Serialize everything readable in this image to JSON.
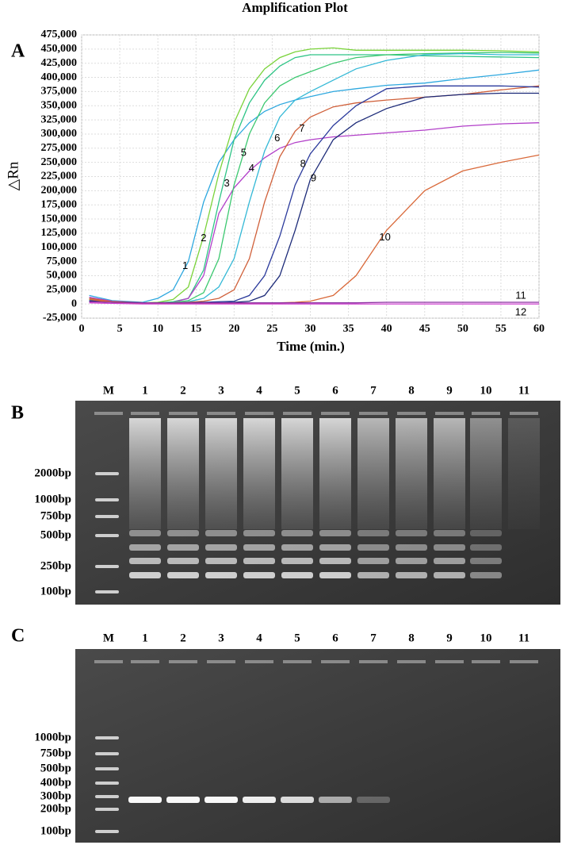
{
  "chart_data": {
    "type": "line",
    "title": "Amplification Plot",
    "panel": "A",
    "xlabel": "Time (min.)",
    "ylabel": "△Rn",
    "x": [
      1,
      4,
      8,
      10,
      12,
      14,
      16,
      18,
      20,
      22,
      24,
      26,
      28,
      30,
      33,
      36,
      40,
      45,
      50,
      55,
      60
    ],
    "xlim": [
      0,
      60
    ],
    "xticks": [
      0,
      5,
      10,
      15,
      20,
      25,
      30,
      35,
      40,
      45,
      50,
      55,
      60
    ],
    "ylim": [
      -25000,
      475000
    ],
    "yticks": [
      {
        "value": -25000,
        "label": "-25,000"
      },
      0,
      {
        "value": 25000,
        "label": "25,000"
      },
      {
        "value": 50000,
        "label": "50,000"
      },
      {
        "value": 75000,
        "label": "75,000"
      },
      {
        "value": 100000,
        "label": "100,000"
      },
      {
        "value": 125000,
        "label": "125,000"
      },
      {
        "value": 150000,
        "label": "150,000"
      },
      {
        "value": 175000,
        "label": "175,000"
      },
      {
        "value": 200000,
        "label": "200,000"
      },
      {
        "value": 225000,
        "label": "225,000"
      },
      {
        "value": 250000,
        "label": "250,000"
      },
      {
        "value": 275000,
        "label": "275,000"
      },
      {
        "value": 300000,
        "label": "300,000"
      },
      {
        "value": 325000,
        "label": "325,000"
      },
      {
        "value": 350000,
        "label": "350,000"
      },
      {
        "value": 375000,
        "label": "375,000"
      },
      {
        "value": 400000,
        "label": "400,000"
      },
      {
        "value": 425000,
        "label": "425,000"
      },
      {
        "value": 450000,
        "label": "450,000"
      },
      {
        "value": 475000,
        "label": "475,000"
      }
    ],
    "grid": true,
    "series": [
      {
        "name": "1",
        "color": "#2ea8df",
        "values": [
          15000,
          6000,
          3000,
          10000,
          25000,
          75000,
          180000,
          250000,
          290000,
          320000,
          340000,
          352000,
          360000,
          366000,
          375000,
          380000,
          386000,
          390000,
          398000,
          405000,
          413000
        ]
      },
      {
        "name": "2",
        "color": "#7ad33a",
        "values": [
          10000,
          5000,
          2000,
          3000,
          8000,
          30000,
          120000,
          230000,
          320000,
          380000,
          415000,
          435000,
          445000,
          450000,
          452000,
          448000,
          448000,
          448000,
          448000,
          447000,
          445000
        ]
      },
      {
        "name": "3",
        "color": "#2ec486",
        "values": [
          8000,
          4000,
          2000,
          2000,
          4000,
          10000,
          60000,
          180000,
          290000,
          355000,
          395000,
          420000,
          435000,
          440000,
          440000,
          440000,
          440000,
          438000,
          437000,
          436000,
          435000
        ]
      },
      {
        "name": "4",
        "color": "#b23fc9",
        "values": [
          12000,
          5000,
          2000,
          2000,
          3000,
          10000,
          50000,
          160000,
          205000,
          235000,
          258000,
          275000,
          285000,
          290000,
          295000,
          298000,
          302000,
          307000,
          314000,
          318000,
          320000
        ]
      },
      {
        "name": "5",
        "color": "#3cc870",
        "values": [
          6000,
          4000,
          2000,
          2000,
          3000,
          6000,
          20000,
          80000,
          210000,
          300000,
          355000,
          385000,
          400000,
          410000,
          425000,
          435000,
          440000,
          442000,
          443000,
          444000,
          443000
        ]
      },
      {
        "name": "6",
        "color": "#33b8d6",
        "values": [
          5000,
          3000,
          2000,
          2000,
          2000,
          4000,
          10000,
          30000,
          80000,
          180000,
          270000,
          330000,
          360000,
          375000,
          395000,
          415000,
          430000,
          440000,
          442000,
          440000,
          440000
        ]
      },
      {
        "name": "7",
        "color": "#d0603a",
        "values": [
          10000,
          4000,
          2000,
          2000,
          2000,
          3000,
          5000,
          10000,
          25000,
          80000,
          180000,
          260000,
          305000,
          330000,
          348000,
          355000,
          360000,
          365000,
          370000,
          378000,
          385000
        ]
      },
      {
        "name": "8",
        "color": "#2b3a9c",
        "values": [
          6000,
          3000,
          2000,
          2000,
          2000,
          2000,
          3000,
          4000,
          5000,
          15000,
          50000,
          120000,
          210000,
          265000,
          315000,
          350000,
          380000,
          385000,
          385000,
          385000,
          383000
        ]
      },
      {
        "name": "9",
        "color": "#1c2a78",
        "values": [
          5000,
          3000,
          2000,
          1000,
          1000,
          1000,
          2000,
          2000,
          3000,
          5000,
          15000,
          50000,
          130000,
          220000,
          290000,
          320000,
          345000,
          365000,
          370000,
          372000,
          372000
        ]
      },
      {
        "name": "10",
        "color": "#d9693a",
        "values": [
          8000,
          3000,
          1000,
          1000,
          1000,
          1000,
          1000,
          1000,
          1000,
          2000,
          2000,
          2000,
          3000,
          5000,
          15000,
          50000,
          130000,
          200000,
          235000,
          250000,
          263000
        ]
      },
      {
        "name": "11",
        "color": "#8b2fa0",
        "values": [
          4000,
          3000,
          2000,
          2000,
          2000,
          2000,
          2000,
          2000,
          2000,
          2000,
          2000,
          2000,
          2000,
          2000,
          2000,
          2000,
          3000,
          3000,
          3000,
          3000,
          3000
        ]
      },
      {
        "name": "12",
        "color": "#d040d0",
        "values": [
          2000,
          1000,
          0,
          0,
          0,
          0,
          0,
          0,
          0,
          0,
          0,
          0,
          0,
          0,
          0,
          0,
          0,
          0,
          0,
          0,
          0
        ]
      }
    ]
  },
  "gels": [
    {
      "panel": "B",
      "lanes": [
        "M",
        "1",
        "2",
        "3",
        "4",
        "5",
        "6",
        "7",
        "8",
        "9",
        "10",
        "11"
      ],
      "ladder": [
        "2000bp",
        "1000bp",
        "750bp",
        "500bp",
        "250bp",
        "100bp"
      ]
    },
    {
      "panel": "C",
      "lanes": [
        "M",
        "1",
        "2",
        "3",
        "4",
        "5",
        "6",
        "7",
        "8",
        "9",
        "10",
        "11"
      ],
      "ladder": [
        "1000bp",
        "750bp",
        "500bp",
        "400bp",
        "300bp",
        "200bp",
        "100bp"
      ]
    }
  ]
}
